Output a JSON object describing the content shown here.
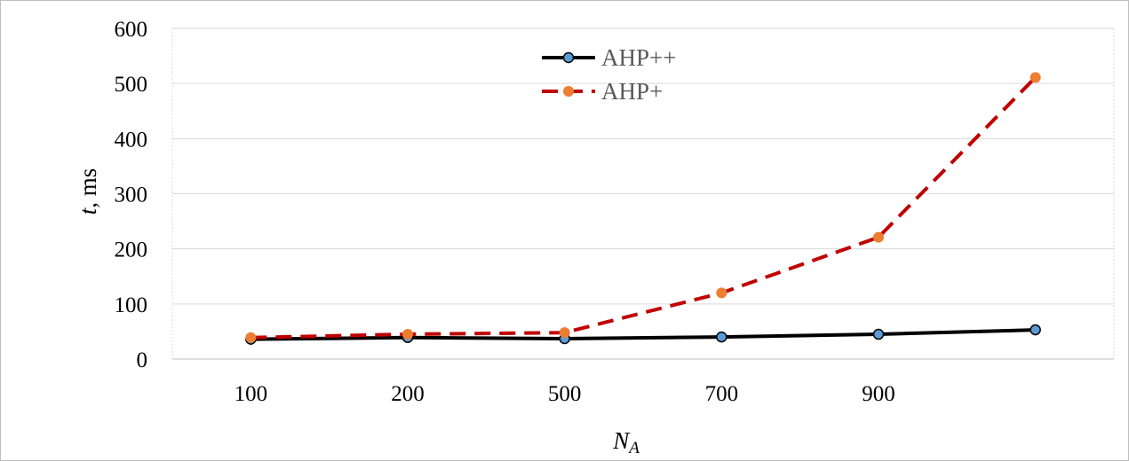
{
  "chart_data": {
    "type": "line",
    "title": "",
    "xlabel_main": "N",
    "xlabel_sub": "A",
    "ylabel_italic": "t",
    "ylabel_rest": ", ms",
    "categories": [
      "100",
      "200",
      "500",
      "700",
      "900",
      ""
    ],
    "ylim": [
      0,
      600
    ],
    "yticks": [
      0,
      100,
      200,
      300,
      400,
      500,
      600
    ],
    "grid": true,
    "legend": "top-center",
    "series": [
      {
        "name": "AHP++",
        "values": [
          36,
          39,
          37,
          40,
          45,
          53
        ],
        "line_color": "#000000",
        "marker_color": "#5b9bd5",
        "dash": "solid"
      },
      {
        "name": "AHP+",
        "values": [
          39,
          45,
          48,
          120,
          221,
          511
        ],
        "line_color": "#c00000",
        "marker_color": "#ed7d31",
        "dash": "dashed"
      }
    ]
  }
}
